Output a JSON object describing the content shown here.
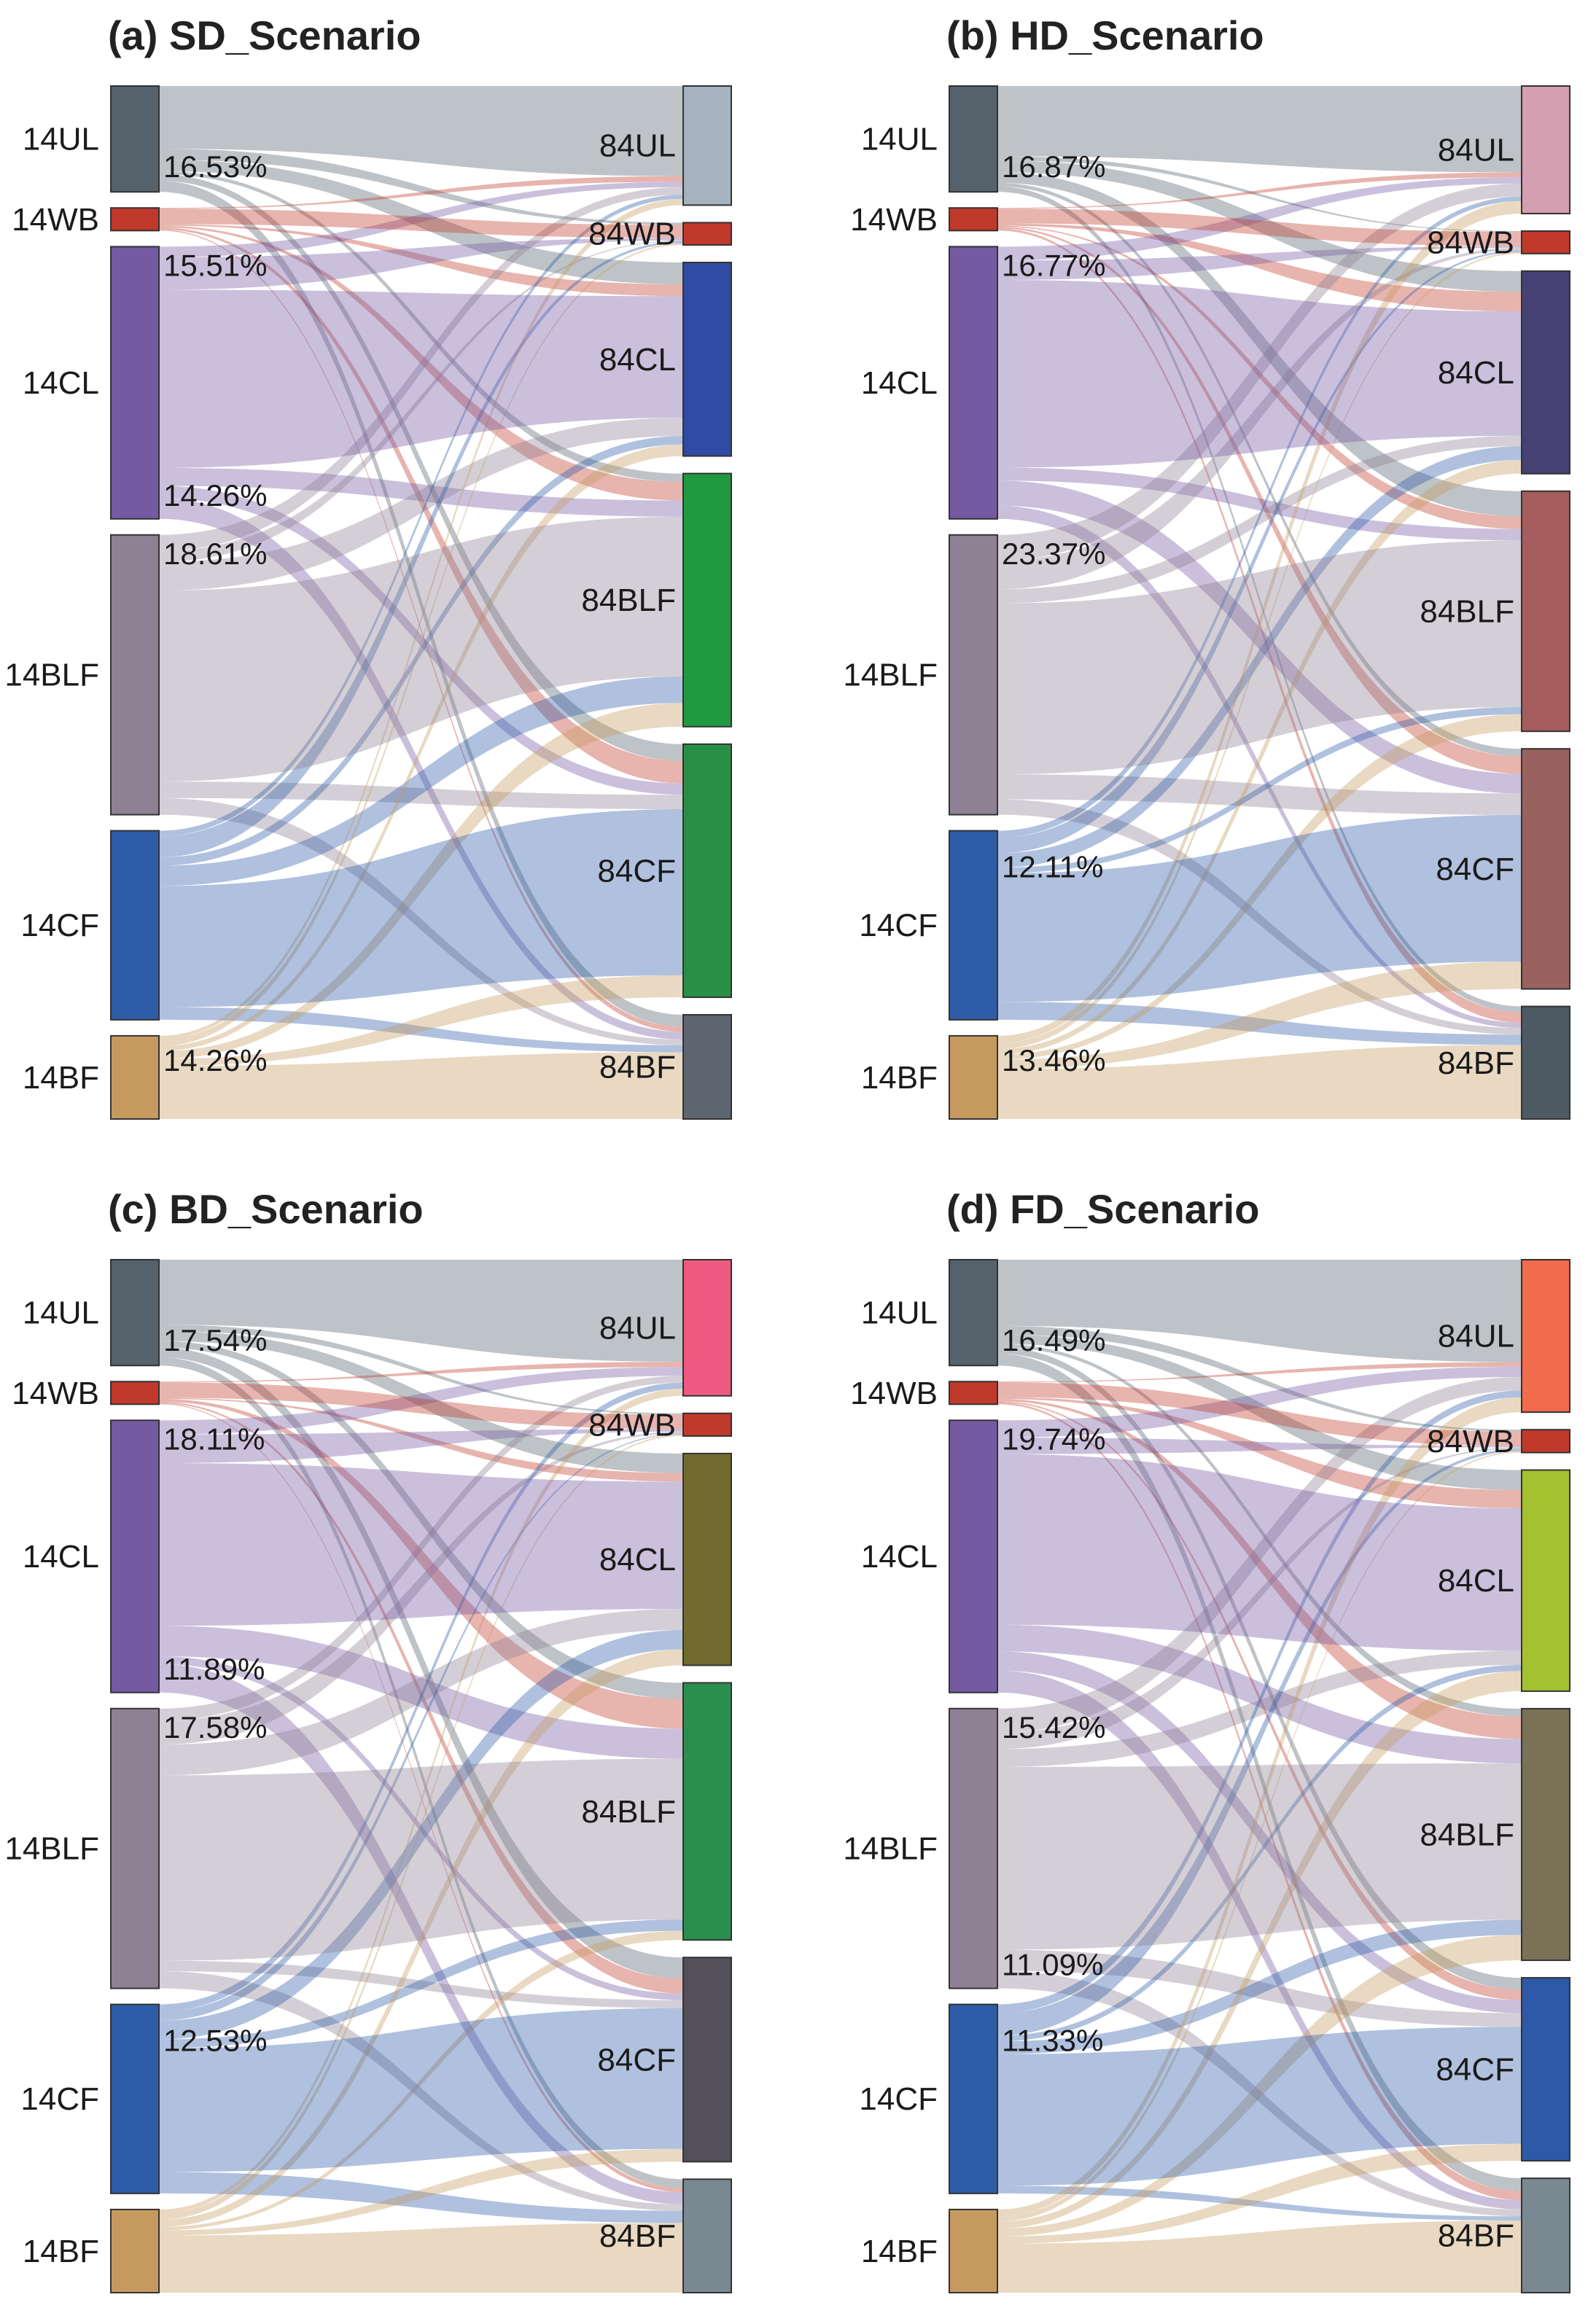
{
  "chart_data": [
    {
      "type": "sankey",
      "title": "(a) SD_Scenario",
      "sources": [
        {
          "name": "14UL",
          "value": 7.0,
          "color": "#55616b"
        },
        {
          "name": "14WB",
          "value": 1.5,
          "color": "#c0392b"
        },
        {
          "name": "14CL",
          "value": 18.0,
          "color": "#745aa3"
        },
        {
          "name": "14BLF",
          "value": 18.5,
          "color": "#8f8194"
        },
        {
          "name": "14CF",
          "value": 12.5,
          "color": "#2e5ca8"
        },
        {
          "name": "14BF",
          "value": 5.5,
          "color": "#c69a5f"
        }
      ],
      "targets": [
        {
          "name": "84UL",
          "value": 8.0,
          "color": "#a6b2bd"
        },
        {
          "name": "84WB",
          "value": 1.5,
          "color": "#c0392b"
        },
        {
          "name": "84CL",
          "value": 13.0,
          "color": "#2f4ba3"
        },
        {
          "name": "84BLF",
          "value": 17.0,
          "color": "#1f9a40"
        },
        {
          "name": "84CF",
          "value": 17.0,
          "color": "#2a8f46"
        },
        {
          "name": "84BF",
          "value": 7.0,
          "color": "#5d6570"
        }
      ],
      "annotations": [
        {
          "source": "14UL",
          "text": "16.53%"
        },
        {
          "source": "14CL",
          "text": "15.51%"
        },
        {
          "source": "14CL",
          "text": "14.26%"
        },
        {
          "source": "14BLF",
          "text": "18.61%"
        },
        {
          "source": "14BF",
          "text": "14.26%"
        }
      ]
    },
    {
      "type": "sankey",
      "title": "(b) HD_Scenario",
      "sources": [
        {
          "name": "14UL",
          "value": 7.0,
          "color": "#55616b"
        },
        {
          "name": "14WB",
          "value": 1.5,
          "color": "#c0392b"
        },
        {
          "name": "14CL",
          "value": 18.0,
          "color": "#745aa3"
        },
        {
          "name": "14BLF",
          "value": 18.5,
          "color": "#8f8194"
        },
        {
          "name": "14CF",
          "value": 12.5,
          "color": "#2e5ca8"
        },
        {
          "name": "14BF",
          "value": 5.5,
          "color": "#c69a5f"
        }
      ],
      "targets": [
        {
          "name": "84UL",
          "value": 8.5,
          "color": "#d49fb0"
        },
        {
          "name": "84WB",
          "value": 1.5,
          "color": "#c0392b"
        },
        {
          "name": "84CL",
          "value": 13.5,
          "color": "#454172"
        },
        {
          "name": "84BLF",
          "value": 16.0,
          "color": "#a55d5d"
        },
        {
          "name": "84CF",
          "value": 16.0,
          "color": "#9a625e"
        },
        {
          "name": "84BF",
          "value": 7.5,
          "color": "#4e5a63"
        }
      ],
      "annotations": [
        {
          "source": "14UL",
          "text": "16.87%"
        },
        {
          "source": "14CL",
          "text": "16.77%"
        },
        {
          "source": "14BLF",
          "text": "23.37%"
        },
        {
          "source": "14CF",
          "text": "12.11%"
        },
        {
          "source": "14BF",
          "text": "13.46%"
        }
      ]
    },
    {
      "type": "sankey",
      "title": "(c) BD_Scenario",
      "sources": [
        {
          "name": "14UL",
          "value": 7.0,
          "color": "#55616b"
        },
        {
          "name": "14WB",
          "value": 1.5,
          "color": "#c0392b"
        },
        {
          "name": "14CL",
          "value": 18.0,
          "color": "#745aa3"
        },
        {
          "name": "14BLF",
          "value": 18.5,
          "color": "#8f8194"
        },
        {
          "name": "14CF",
          "value": 12.5,
          "color": "#2e5ca8"
        },
        {
          "name": "14BF",
          "value": 5.5,
          "color": "#c69a5f"
        }
      ],
      "targets": [
        {
          "name": "84UL",
          "value": 9.0,
          "color": "#ee5a7f"
        },
        {
          "name": "84WB",
          "value": 1.5,
          "color": "#c0392b"
        },
        {
          "name": "84CL",
          "value": 14.0,
          "color": "#716b2e"
        },
        {
          "name": "84BLF",
          "value": 17.0,
          "color": "#2a8f4e"
        },
        {
          "name": "84CF",
          "value": 13.5,
          "color": "#545059"
        },
        {
          "name": "84BF",
          "value": 7.5,
          "color": "#7a8891"
        }
      ],
      "annotations": [
        {
          "source": "14UL",
          "text": "17.54%"
        },
        {
          "source": "14CL",
          "text": "18.11%"
        },
        {
          "source": "14CL",
          "text": "11.89%"
        },
        {
          "source": "14BLF",
          "text": "17.58%"
        },
        {
          "source": "14CF",
          "text": "12.53%"
        }
      ]
    },
    {
      "type": "sankey",
      "title": "(d) FD_Scenario",
      "sources": [
        {
          "name": "14UL",
          "value": 7.0,
          "color": "#55616b"
        },
        {
          "name": "14WB",
          "value": 1.5,
          "color": "#c0392b"
        },
        {
          "name": "14CL",
          "value": 18.0,
          "color": "#745aa3"
        },
        {
          "name": "14BLF",
          "value": 18.5,
          "color": "#8f8194"
        },
        {
          "name": "14CF",
          "value": 12.5,
          "color": "#2e5ca8"
        },
        {
          "name": "14BF",
          "value": 5.5,
          "color": "#c69a5f"
        }
      ],
      "targets": [
        {
          "name": "84UL",
          "value": 10.0,
          "color": "#f26b4c"
        },
        {
          "name": "84WB",
          "value": 1.5,
          "color": "#c0392b"
        },
        {
          "name": "84CL",
          "value": 14.5,
          "color": "#a4c230"
        },
        {
          "name": "84BLF",
          "value": 16.5,
          "color": "#7a7156"
        },
        {
          "name": "84CF",
          "value": 12.0,
          "color": "#2e58a8"
        },
        {
          "name": "84BF",
          "value": 7.5,
          "color": "#7a8891"
        }
      ],
      "annotations": [
        {
          "source": "14UL",
          "text": "16.49%"
        },
        {
          "source": "14CL",
          "text": "19.74%"
        },
        {
          "source": "14BLF",
          "text": "15.42%"
        },
        {
          "source": "14BLF",
          "text": "11.09%"
        },
        {
          "source": "14CF",
          "text": "11.33%"
        }
      ]
    }
  ]
}
